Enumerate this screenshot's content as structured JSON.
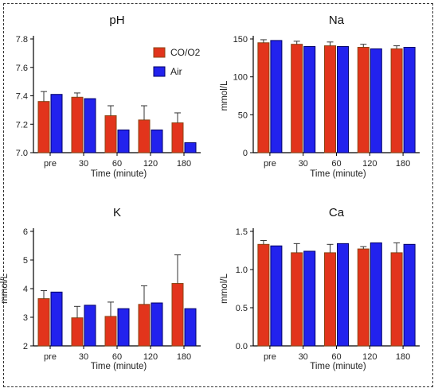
{
  "colors": {
    "co_o2_bar": "#E2341C",
    "co_o2_edge": "#8B4513",
    "air_bar": "#2222EE",
    "air_edge": "#000066",
    "axis": "#000000"
  },
  "legend": {
    "co_o2": "CO/O2",
    "air": "Air"
  },
  "chart_data": [
    {
      "type": "bar",
      "title": "pH",
      "xlabel": "Time (minute)",
      "ylabel": "",
      "categories": [
        "pre",
        "30",
        "60",
        "120",
        "180"
      ],
      "ylim": [
        7.0,
        7.8
      ],
      "yticks": [
        "7.0",
        "7.2",
        "7.4",
        "7.6",
        "7.8"
      ],
      "series": [
        {
          "name": "CO/O2",
          "values": [
            7.36,
            7.39,
            7.26,
            7.23,
            7.21
          ],
          "errors": [
            0.07,
            0.03,
            0.07,
            0.1,
            0.07
          ]
        },
        {
          "name": "Air",
          "values": [
            7.41,
            7.38,
            7.16,
            7.16,
            7.07
          ],
          "errors": [
            0,
            0,
            0,
            0,
            0
          ]
        }
      ]
    },
    {
      "type": "bar",
      "title": "Na",
      "xlabel": "Time (minute)",
      "ylabel": "mmol/L",
      "categories": [
        "pre",
        "30",
        "60",
        "120",
        "180"
      ],
      "ylim": [
        0,
        150
      ],
      "yticks": [
        "0",
        "50",
        "100",
        "150"
      ],
      "series": [
        {
          "name": "CO/O2",
          "values": [
            145,
            143,
            141,
            139,
            137
          ],
          "errors": [
            4,
            4,
            5,
            4,
            4
          ]
        },
        {
          "name": "Air",
          "values": [
            148,
            140,
            140,
            137,
            139
          ],
          "errors": [
            0,
            0,
            0,
            0,
            0
          ]
        }
      ]
    },
    {
      "type": "bar",
      "title": "K",
      "xlabel": "Time (minute)",
      "ylabel": "mmol/L",
      "categories": [
        "pre",
        "30",
        "60",
        "120",
        "180"
      ],
      "ylim": [
        2,
        6
      ],
      "yticks": [
        "2",
        "3",
        "4",
        "5",
        "6"
      ],
      "series": [
        {
          "name": "CO/O2",
          "values": [
            3.65,
            2.98,
            3.03,
            3.45,
            4.18
          ],
          "errors": [
            0.28,
            0.4,
            0.5,
            0.65,
            1.0
          ]
        },
        {
          "name": "Air",
          "values": [
            3.88,
            3.42,
            3.3,
            3.5,
            3.3
          ],
          "errors": [
            0,
            0,
            0,
            0,
            0
          ]
        }
      ]
    },
    {
      "type": "bar",
      "title": "Ca",
      "xlabel": "Time (minute)",
      "ylabel": "mmol/L",
      "categories": [
        "pre",
        "30",
        "60",
        "120",
        "180"
      ],
      "ylim": [
        0,
        1.5
      ],
      "yticks": [
        "0.0",
        "0.5",
        "1.0",
        "1.5"
      ],
      "series": [
        {
          "name": "CO/O2",
          "values": [
            1.33,
            1.22,
            1.22,
            1.27,
            1.22
          ],
          "errors": [
            0.05,
            0.12,
            0.11,
            0.03,
            0.13
          ]
        },
        {
          "name": "Air",
          "values": [
            1.31,
            1.24,
            1.34,
            1.35,
            1.33
          ],
          "errors": [
            0,
            0,
            0,
            0,
            0
          ]
        }
      ]
    }
  ]
}
